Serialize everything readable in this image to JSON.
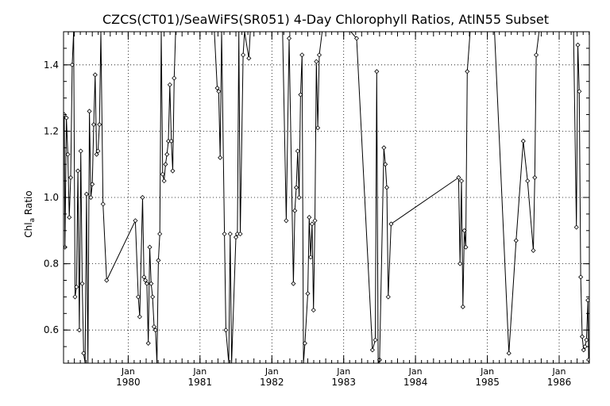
{
  "chart_data": {
    "type": "line",
    "title": "CZCS(CT01)/SeaWiFS(SR051) 4-Day Chlorophyll Ratios, AtlN55 Subset",
    "ylabel": "Chl",
    "ylabel_sub": "a",
    "ylabel_rest": " Ratio",
    "ylim": [
      0.5,
      1.5
    ],
    "xlim": [
      1979.1,
      1986.42
    ],
    "yticks": [
      0.6,
      0.8,
      1.0,
      1.2,
      1.4
    ],
    "ytick_labels": [
      "0.6",
      "0.8",
      "1.0",
      "1.2",
      "1.4"
    ],
    "xtick_month_label": "Jan",
    "xtick_years": [
      1980,
      1981,
      1982,
      1983,
      1984,
      1985,
      1986
    ],
    "xtick_labels": [
      "1980",
      "1981",
      "1982",
      "1983",
      "1984",
      "1985",
      "1986"
    ],
    "grid": true,
    "line_color": "#000000",
    "series": [
      {
        "points": [
          [
            1979.11,
            1.25
          ],
          [
            1979.12,
            0.85
          ],
          [
            1979.14,
            1.24
          ],
          [
            1979.16,
            1.13
          ],
          [
            1979.18,
            0.94
          ],
          [
            1979.2,
            1.06
          ],
          [
            1979.22,
            1.4
          ],
          [
            1979.24,
            1.5
          ],
          [
            1979.26,
            0.7
          ],
          [
            1979.28,
            0.73
          ],
          [
            1979.3,
            1.08
          ],
          [
            1979.32,
            0.6
          ],
          [
            1979.34,
            1.14
          ],
          [
            1979.36,
            0.74
          ],
          [
            1979.38,
            0.53
          ],
          [
            1979.4,
            0.5
          ],
          [
            1979.42,
            1.01
          ],
          [
            1979.44,
            0.5
          ],
          [
            1979.46,
            1.26
          ],
          [
            1979.48,
            1.0
          ],
          [
            1979.5,
            1.04
          ],
          [
            1979.52,
            1.22
          ],
          [
            1979.54,
            1.37
          ],
          [
            1979.56,
            1.13
          ],
          [
            1979.58,
            1.14
          ],
          [
            1979.6,
            1.22
          ],
          [
            1979.62,
            1.5
          ],
          [
            1979.65,
            0.98
          ],
          [
            1979.7,
            0.75
          ],
          [
            1980.1,
            0.93
          ],
          [
            1980.14,
            0.7
          ],
          [
            1980.16,
            0.64
          ],
          [
            1980.2,
            1.0
          ],
          [
            1980.22,
            0.76
          ],
          [
            1980.24,
            0.75
          ],
          [
            1980.26,
            0.74
          ],
          [
            1980.28,
            0.56
          ],
          [
            1980.3,
            0.85
          ],
          [
            1980.32,
            0.74
          ],
          [
            1980.34,
            0.7
          ],
          [
            1980.36,
            0.61
          ],
          [
            1980.38,
            0.6
          ],
          [
            1980.4,
            0.5
          ],
          [
            1980.42,
            0.81
          ],
          [
            1980.44,
            0.89
          ],
          [
            1980.46,
            1.5
          ],
          [
            1980.48,
            1.07
          ],
          [
            1980.5,
            1.05
          ],
          [
            1980.52,
            1.1
          ],
          [
            1980.54,
            1.13
          ],
          [
            1980.56,
            1.17
          ],
          [
            1980.58,
            1.34
          ],
          [
            1980.6,
            1.17
          ],
          [
            1980.62,
            1.08
          ],
          [
            1980.64,
            1.36
          ],
          [
            1980.66,
            1.5
          ],
          [
            1981.2,
            1.5
          ],
          [
            1981.24,
            1.33
          ],
          [
            1981.26,
            1.32
          ],
          [
            1981.28,
            1.12
          ],
          [
            1981.3,
            1.5
          ],
          [
            1981.34,
            0.89
          ],
          [
            1981.36,
            0.6
          ],
          [
            1981.4,
            0.5
          ],
          [
            1981.42,
            0.89
          ],
          [
            1981.44,
            0.5
          ],
          [
            1981.5,
            0.88
          ],
          [
            1981.52,
            0.89
          ],
          [
            1981.54,
            1.5
          ],
          [
            1981.56,
            0.89
          ],
          [
            1981.6,
            1.43
          ],
          [
            1981.62,
            1.5
          ],
          [
            1981.68,
            1.42
          ],
          [
            1981.7,
            1.5
          ],
          [
            1982.15,
            1.5
          ],
          [
            1982.2,
            0.93
          ],
          [
            1982.24,
            1.48
          ],
          [
            1982.3,
            0.74
          ],
          [
            1982.32,
            0.96
          ],
          [
            1982.34,
            1.03
          ],
          [
            1982.36,
            1.14
          ],
          [
            1982.38,
            1.0
          ],
          [
            1982.4,
            1.31
          ],
          [
            1982.42,
            1.43
          ],
          [
            1982.44,
            0.5
          ],
          [
            1982.46,
            0.56
          ],
          [
            1982.5,
            0.71
          ],
          [
            1982.52,
            0.94
          ],
          [
            1982.54,
            0.82
          ],
          [
            1982.56,
            0.92
          ],
          [
            1982.58,
            0.66
          ],
          [
            1982.6,
            0.93
          ],
          [
            1982.62,
            1.41
          ],
          [
            1982.64,
            1.21
          ],
          [
            1982.66,
            1.43
          ],
          [
            1982.7,
            1.5
          ],
          [
            1983.1,
            1.5
          ],
          [
            1983.18,
            1.48
          ],
          [
            1983.4,
            0.54
          ],
          [
            1983.44,
            0.57
          ],
          [
            1983.46,
            1.38
          ],
          [
            1983.48,
            0.5
          ],
          [
            1983.5,
            0.51
          ],
          [
            1983.56,
            1.15
          ],
          [
            1983.58,
            1.1
          ],
          [
            1983.6,
            1.03
          ],
          [
            1983.62,
            0.7
          ],
          [
            1983.66,
            0.92
          ],
          [
            1984.6,
            1.06
          ],
          [
            1984.62,
            0.8
          ],
          [
            1984.64,
            1.05
          ],
          [
            1984.66,
            0.67
          ],
          [
            1984.68,
            0.9
          ],
          [
            1984.7,
            0.85
          ],
          [
            1984.72,
            1.38
          ],
          [
            1984.76,
            1.5
          ],
          [
            1985.1,
            1.5
          ],
          [
            1985.3,
            0.53
          ],
          [
            1985.4,
            0.87
          ],
          [
            1985.5,
            1.17
          ],
          [
            1985.56,
            1.05
          ],
          [
            1985.64,
            0.84
          ],
          [
            1985.66,
            1.06
          ],
          [
            1985.68,
            1.43
          ],
          [
            1985.72,
            1.5
          ],
          [
            1986.2,
            1.5
          ],
          [
            1986.24,
            0.91
          ],
          [
            1986.26,
            1.46
          ],
          [
            1986.28,
            1.32
          ],
          [
            1986.3,
            0.76
          ],
          [
            1986.32,
            0.58
          ],
          [
            1986.34,
            0.54
          ],
          [
            1986.36,
            0.55
          ],
          [
            1986.38,
            0.57
          ],
          [
            1986.4,
            0.69
          ],
          [
            1986.41,
            0.51
          ]
        ]
      }
    ]
  }
}
